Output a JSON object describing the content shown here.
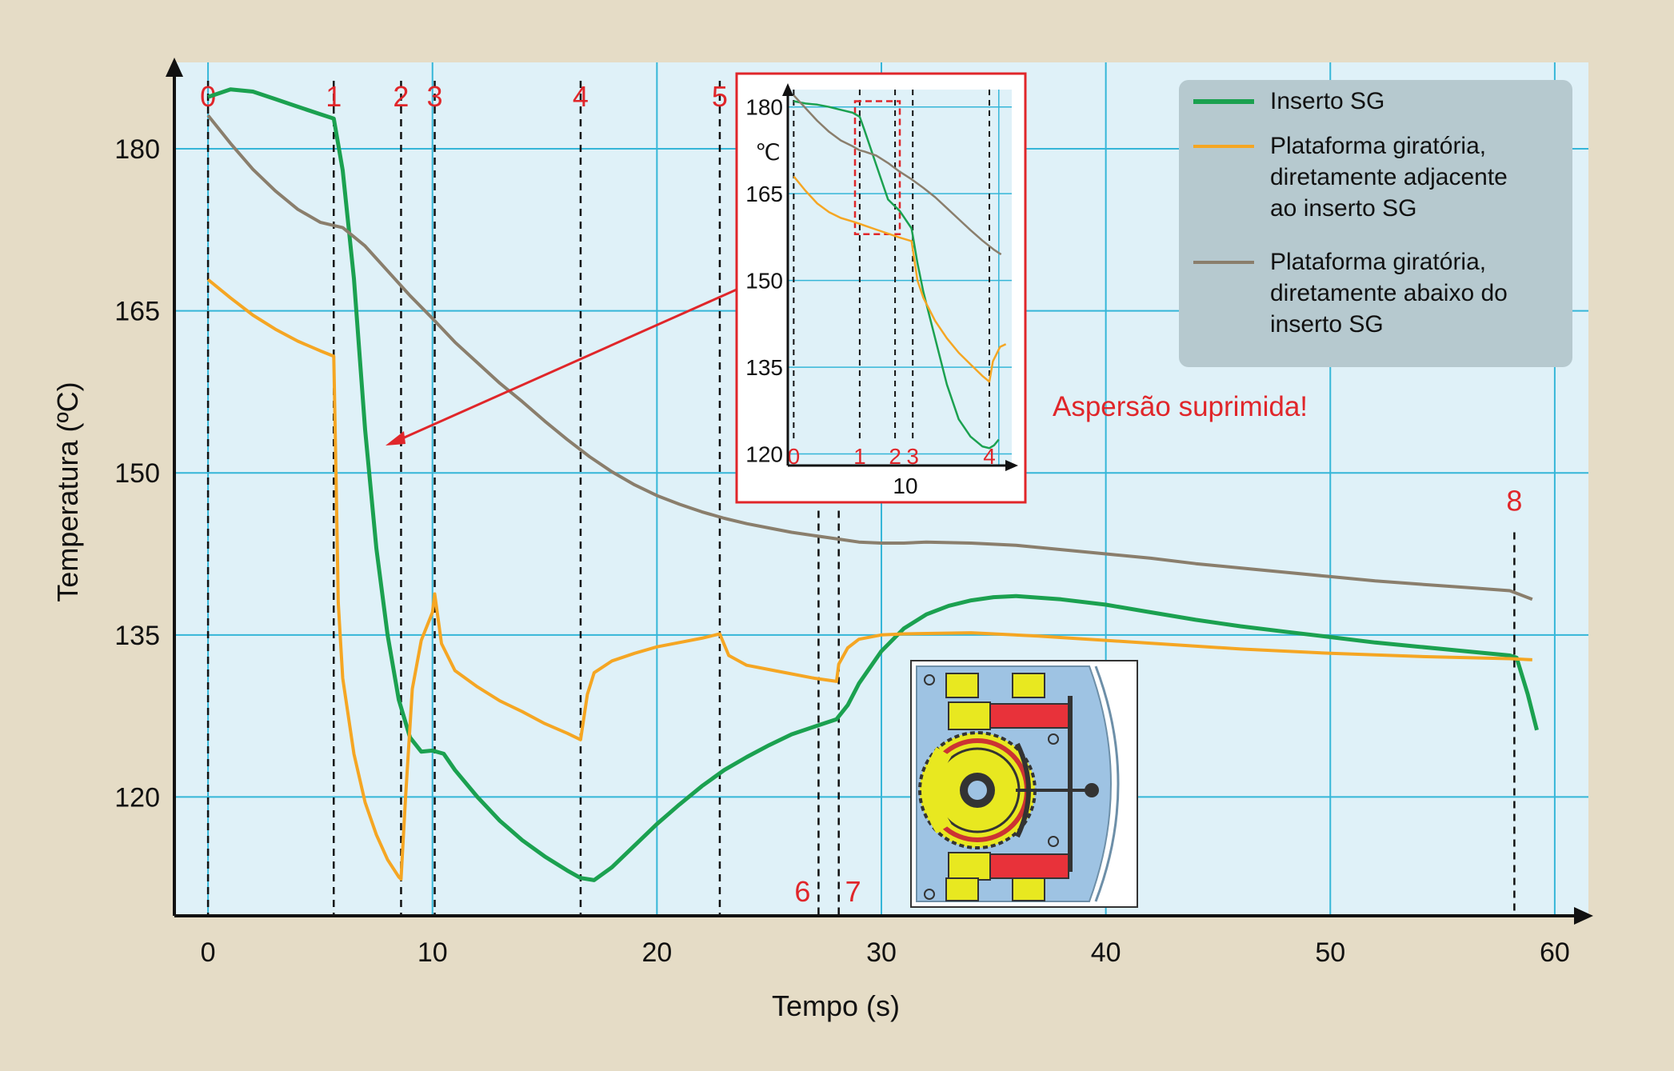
{
  "chart_data": {
    "type": "line",
    "xlabel": "Tempo (s)",
    "ylabel": "Temperatura (ºC)",
    "xlim": [
      -1.5,
      61.5
    ],
    "ylim": [
      109,
      188
    ],
    "x_ticks": [
      0,
      10,
      20,
      30,
      40,
      50,
      60
    ],
    "y_ticks": [
      120,
      135,
      150,
      165,
      180
    ],
    "grid": true,
    "legend_position": "top-right",
    "colors": {
      "plot_bg": "#dff1f8",
      "grid": "#35b6d8",
      "green": "#1ba150",
      "orange": "#f5a623",
      "gray": "#8a7e6c",
      "accent_red": "#e0262a",
      "legend_bg": "#b6c9cf"
    },
    "phase_markers": [
      {
        "label": "0",
        "x": 0
      },
      {
        "label": "1",
        "x": 5.6
      },
      {
        "label": "2",
        "x": 8.6
      },
      {
        "label": "3",
        "x": 10.1
      },
      {
        "label": "4",
        "x": 16.6
      },
      {
        "label": "5",
        "x": 22.8
      },
      {
        "label": "6",
        "x": 27.2
      },
      {
        "label": "7",
        "x": 28.1
      },
      {
        "label": "8",
        "x": 58.2
      }
    ],
    "series": [
      {
        "name": "Inserto SG",
        "color": "#1ba150",
        "points": [
          [
            0,
            184.8
          ],
          [
            1,
            185.5
          ],
          [
            2,
            185.3
          ],
          [
            3,
            184.6
          ],
          [
            4,
            183.9
          ],
          [
            5,
            183.2
          ],
          [
            5.6,
            182.8
          ],
          [
            6,
            178
          ],
          [
            6.5,
            168
          ],
          [
            7,
            154
          ],
          [
            7.5,
            143
          ],
          [
            8,
            135
          ],
          [
            8.5,
            129
          ],
          [
            9,
            125.5
          ],
          [
            9.5,
            124.2
          ],
          [
            10,
            124.3
          ],
          [
            10.5,
            124
          ],
          [
            11,
            122.5
          ],
          [
            12,
            120
          ],
          [
            13,
            117.8
          ],
          [
            14,
            116
          ],
          [
            15,
            114.5
          ],
          [
            16,
            113.2
          ],
          [
            16.6,
            112.5
          ],
          [
            17.2,
            112.3
          ],
          [
            18,
            113.5
          ],
          [
            19,
            115.5
          ],
          [
            20,
            117.5
          ],
          [
            21,
            119.3
          ],
          [
            22,
            121
          ],
          [
            23,
            122.5
          ],
          [
            24,
            123.7
          ],
          [
            25,
            124.8
          ],
          [
            26,
            125.8
          ],
          [
            27,
            126.5
          ],
          [
            28,
            127.2
          ],
          [
            28.5,
            128.5
          ],
          [
            29,
            130.5
          ],
          [
            30,
            133.5
          ],
          [
            31,
            135.6
          ],
          [
            32,
            136.9
          ],
          [
            33,
            137.7
          ],
          [
            34,
            138.2
          ],
          [
            35,
            138.5
          ],
          [
            36,
            138.6
          ],
          [
            38,
            138.3
          ],
          [
            40,
            137.8
          ],
          [
            42,
            137.1
          ],
          [
            44,
            136.4
          ],
          [
            46,
            135.8
          ],
          [
            48,
            135.3
          ],
          [
            50,
            134.8
          ],
          [
            52,
            134.3
          ],
          [
            54,
            133.9
          ],
          [
            56,
            133.5
          ],
          [
            58,
            133.1
          ],
          [
            58.3,
            132.9
          ],
          [
            58.8,
            129.5
          ],
          [
            59.2,
            126.2
          ]
        ]
      },
      {
        "name": "Plataforma giratória, diretamente adjacente ao inserto SG",
        "color": "#f5a623",
        "points": [
          [
            0,
            167.9
          ],
          [
            1,
            166.2
          ],
          [
            2,
            164.6
          ],
          [
            3,
            163.3
          ],
          [
            4,
            162.2
          ],
          [
            5,
            161.3
          ],
          [
            5.6,
            160.8
          ],
          [
            5.7,
            150
          ],
          [
            5.8,
            138
          ],
          [
            6,
            131
          ],
          [
            6.5,
            124
          ],
          [
            7,
            119.5
          ],
          [
            7.5,
            116.5
          ],
          [
            8,
            114.2
          ],
          [
            8.5,
            112.6
          ],
          [
            8.6,
            112.4
          ],
          [
            8.8,
            120
          ],
          [
            9.1,
            130
          ],
          [
            9.5,
            134.5
          ],
          [
            10,
            137.1
          ],
          [
            10.1,
            138.8
          ],
          [
            10.4,
            134.2
          ],
          [
            11,
            131.7
          ],
          [
            12,
            130.2
          ],
          [
            13,
            128.9
          ],
          [
            14,
            127.9
          ],
          [
            15,
            126.8
          ],
          [
            16,
            125.9
          ],
          [
            16.6,
            125.3
          ],
          [
            16.9,
            129.5
          ],
          [
            17.2,
            131.5
          ],
          [
            18,
            132.6
          ],
          [
            19,
            133.3
          ],
          [
            20,
            133.9
          ],
          [
            21,
            134.3
          ],
          [
            22,
            134.7
          ],
          [
            22.8,
            135.1
          ],
          [
            23.2,
            133.1
          ],
          [
            24,
            132.2
          ],
          [
            25,
            131.8
          ],
          [
            26,
            131.4
          ],
          [
            27,
            131
          ],
          [
            28,
            130.7
          ],
          [
            28.1,
            132.3
          ],
          [
            28.5,
            133.8
          ],
          [
            29,
            134.6
          ],
          [
            30,
            135
          ],
          [
            31,
            135.1
          ],
          [
            34,
            135.2
          ],
          [
            37,
            134.9
          ],
          [
            40,
            134.5
          ],
          [
            43,
            134.1
          ],
          [
            46,
            133.7
          ],
          [
            50,
            133.3
          ],
          [
            54,
            133
          ],
          [
            58,
            132.8
          ],
          [
            59,
            132.7
          ]
        ]
      },
      {
        "name": "Plataforma giratória, diretamente abaixo do inserto SG",
        "color": "#8a7e6c",
        "points": [
          [
            0,
            183.1
          ],
          [
            1,
            180.5
          ],
          [
            2,
            178.1
          ],
          [
            3,
            176.1
          ],
          [
            4,
            174.4
          ],
          [
            5,
            173.2
          ],
          [
            5.6,
            172.9
          ],
          [
            6,
            172.7
          ],
          [
            7,
            171
          ],
          [
            8,
            168.7
          ],
          [
            9,
            166.4
          ],
          [
            10,
            164.3
          ],
          [
            11,
            162.1
          ],
          [
            12,
            160.2
          ],
          [
            13,
            158.3
          ],
          [
            14,
            156.6
          ],
          [
            15,
            154.8
          ],
          [
            16,
            153.1
          ],
          [
            17,
            151.5
          ],
          [
            18,
            150.1
          ],
          [
            19,
            148.9
          ],
          [
            20,
            147.9
          ],
          [
            21,
            147.1
          ],
          [
            22,
            146.4
          ],
          [
            23,
            145.8
          ],
          [
            24,
            145.3
          ],
          [
            25,
            144.9
          ],
          [
            26,
            144.5
          ],
          [
            27,
            144.2
          ],
          [
            28,
            143.9
          ],
          [
            29,
            143.6
          ],
          [
            30,
            143.5
          ],
          [
            31,
            143.5
          ],
          [
            32,
            143.6
          ],
          [
            34,
            143.5
          ],
          [
            36,
            143.3
          ],
          [
            38,
            142.9
          ],
          [
            40,
            142.5
          ],
          [
            42,
            142.1
          ],
          [
            44,
            141.6
          ],
          [
            46,
            141.2
          ],
          [
            48,
            140.8
          ],
          [
            50,
            140.4
          ],
          [
            52,
            140
          ],
          [
            54,
            139.7
          ],
          [
            56,
            139.4
          ],
          [
            58,
            139.1
          ],
          [
            59,
            138.3
          ]
        ]
      }
    ],
    "annotation": "Aspersão suprimida!",
    "inset": {
      "xlim": [
        -0.5,
        18.5
      ],
      "ylim": [
        118,
        183
      ],
      "y_ticks": [
        120,
        135,
        150,
        165,
        180
      ],
      "ylabel": "℃",
      "x_ticks": [
        10
      ],
      "phase_markers": [
        {
          "label": "0",
          "x": 0
        },
        {
          "label": "1",
          "x": 5.6
        },
        {
          "label": "2",
          "x": 8.6
        },
        {
          "label": "3",
          "x": 10.1
        },
        {
          "label": "4",
          "x": 16.6
        }
      ],
      "highlight_x": [
        5.2,
        9.0
      ],
      "highlight_y": [
        158,
        181
      ],
      "series": [
        {
          "color": "#1ba150",
          "points": [
            [
              0,
              181
            ],
            [
              1,
              180.6
            ],
            [
              2,
              180.4
            ],
            [
              3,
              180
            ],
            [
              4,
              179.5
            ],
            [
              5,
              179
            ],
            [
              5.6,
              178.3
            ],
            [
              6,
              176
            ],
            [
              7,
              170
            ],
            [
              8,
              164
            ],
            [
              9,
              162
            ],
            [
              10,
              159
            ],
            [
              10.5,
              153
            ],
            [
              11,
              148
            ],
            [
              12,
              140
            ],
            [
              13,
              132
            ],
            [
              14,
              126
            ],
            [
              15,
              123
            ],
            [
              16,
              121.3
            ],
            [
              16.6,
              121
            ],
            [
              17,
              121.5
            ],
            [
              17.4,
              122.5
            ]
          ]
        },
        {
          "color": "#f5a623",
          "points": [
            [
              0,
              168
            ],
            [
              1,
              165.5
            ],
            [
              2,
              163.3
            ],
            [
              3,
              161.8
            ],
            [
              4,
              160.8
            ],
            [
              5,
              160.2
            ],
            [
              5.6,
              159.8
            ],
            [
              6,
              159.5
            ],
            [
              7,
              158.8
            ],
            [
              8,
              158.1
            ],
            [
              9,
              157.4
            ],
            [
              10,
              156.8
            ],
            [
              10.5,
              150
            ],
            [
              11,
              147
            ],
            [
              12,
              143
            ],
            [
              13,
              140
            ],
            [
              14,
              137.5
            ],
            [
              15,
              135.5
            ],
            [
              16,
              133.5
            ],
            [
              16.6,
              132.5
            ],
            [
              16.9,
              136
            ],
            [
              17.5,
              138.5
            ],
            [
              18,
              139
            ]
          ]
        },
        {
          "color": "#8a7e6c",
          "points": [
            [
              0,
              182
            ],
            [
              1,
              179.8
            ],
            [
              2,
              177.6
            ],
            [
              3,
              175.7
            ],
            [
              4,
              174.2
            ],
            [
              5,
              173.2
            ],
            [
              5.6,
              172.5
            ],
            [
              6,
              172.3
            ],
            [
              7,
              171.6
            ],
            [
              8,
              170.3
            ],
            [
              9,
              168.8
            ],
            [
              10,
              167.5
            ],
            [
              11,
              166
            ],
            [
              12,
              164.4
            ],
            [
              13,
              162.5
            ],
            [
              14,
              160.6
            ],
            [
              15,
              158.7
            ],
            [
              16,
              156.9
            ],
            [
              17,
              155.3
            ],
            [
              17.6,
              154.5
            ]
          ]
        }
      ]
    }
  },
  "legend": {
    "items": [
      {
        "lines": [
          "Inserto SG"
        ],
        "color": "#1ba150"
      },
      {
        "lines": [
          "Plataforma giratória,",
          "diretamente adjacente",
          "ao inserto SG"
        ],
        "color": "#f5a623"
      },
      {
        "lines": [
          "Plataforma giratória,",
          "diretamente abaixo do",
          "inserto SG"
        ],
        "color": "#8a7e6c"
      }
    ]
  },
  "icons": {
    "machine_diagram": "rotary-table-diagram-icon"
  }
}
